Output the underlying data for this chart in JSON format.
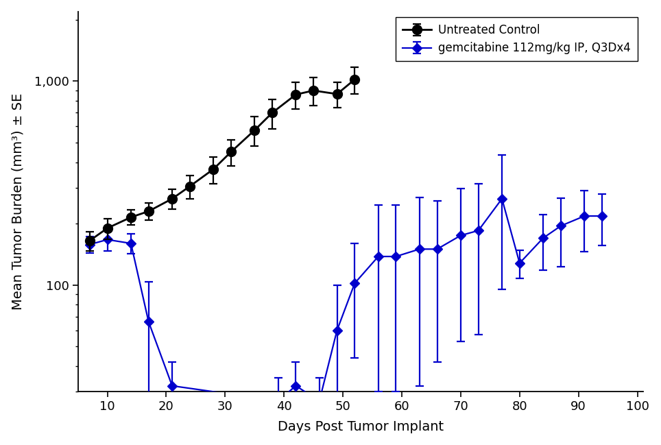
{
  "xlabel": "Days Post Tumor Implant",
  "ylabel": "Mean Tumor Burden (mm³) ± SE",
  "black_x": [
    7,
    10,
    14,
    17,
    21,
    24,
    28,
    31,
    35,
    38,
    42,
    45,
    49,
    52
  ],
  "black_y": [
    165,
    190,
    215,
    230,
    265,
    305,
    370,
    450,
    575,
    700,
    860,
    900,
    865,
    1020
  ],
  "black_yerr_lo": [
    18,
    22,
    18,
    22,
    30,
    40,
    55,
    65,
    95,
    115,
    130,
    140,
    125,
    155
  ],
  "black_yerr_hi": [
    18,
    22,
    18,
    22,
    30,
    40,
    55,
    65,
    95,
    115,
    130,
    140,
    125,
    155
  ],
  "blue_x": [
    7,
    10,
    14,
    17,
    21,
    39,
    42,
    46,
    49,
    52,
    56,
    59,
    63,
    66,
    70,
    73,
    77,
    80,
    84,
    87,
    91,
    94
  ],
  "blue_y": [
    158,
    167,
    160,
    66,
    32,
    27,
    32,
    27,
    60,
    102,
    138,
    138,
    150,
    150,
    175,
    185,
    265,
    128,
    170,
    195,
    218,
    218
  ],
  "blue_yerr_lo": [
    15,
    20,
    18,
    38,
    10,
    8,
    10,
    8,
    40,
    58,
    108,
    108,
    118,
    108,
    122,
    128,
    170,
    20,
    52,
    72,
    72,
    62
  ],
  "blue_yerr_hi": [
    15,
    20,
    18,
    38,
    10,
    8,
    10,
    8,
    40,
    58,
    108,
    108,
    118,
    108,
    122,
    128,
    170,
    20,
    52,
    72,
    72,
    62
  ],
  "black_color": "#000000",
  "blue_color": "#0000CC",
  "legend_label_black": "Untreated Control",
  "legend_label_blue": "gemcitabine 112mg/kg IP, Q3Dx4",
  "xlim": [
    5,
    101
  ],
  "ylim_lo": 30,
  "ylim_hi": 2200,
  "xticks": [
    10,
    20,
    30,
    40,
    50,
    60,
    70,
    80,
    90,
    100
  ],
  "background_color": "#ffffff"
}
